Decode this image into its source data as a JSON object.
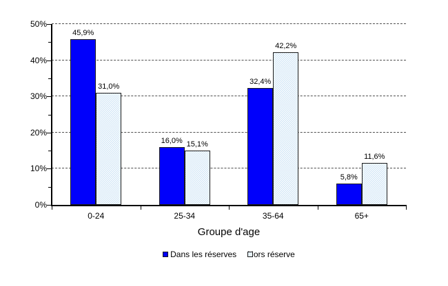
{
  "chart_data": {
    "type": "bar",
    "title": "",
    "xlabel": "Groupe d'age",
    "ylabel": "",
    "categories": [
      "0-24",
      "25-34",
      "35-64",
      "65+"
    ],
    "series": [
      {
        "name": "Dans les réserves",
        "values": [
          45.9,
          16.0,
          32.4,
          5.8
        ],
        "labels": [
          "45,9%",
          "16,0%",
          "32,4%",
          "5,8%"
        ],
        "color": "#0000fb",
        "pattern": "solid"
      },
      {
        "name": "Hors réserve",
        "values": [
          31.0,
          15.1,
          42.2,
          11.6
        ],
        "labels": [
          "31,0%",
          "15,1%",
          "42,2%",
          "11,6%"
        ],
        "color": "#cfe4f6",
        "pattern": "checker"
      }
    ],
    "ylim": [
      0,
      50
    ],
    "y_tick_labels": [
      "0%",
      "10%",
      "20%",
      "30%",
      "40%",
      "50%"
    ],
    "y_major_step": 10,
    "y_minor_step": 5,
    "grid": "dashed-horizontal",
    "legend_position": "bottom",
    "axis_color": "#000000",
    "gridline_color": "#4d4d4d",
    "background_color": "#ffffff"
  }
}
